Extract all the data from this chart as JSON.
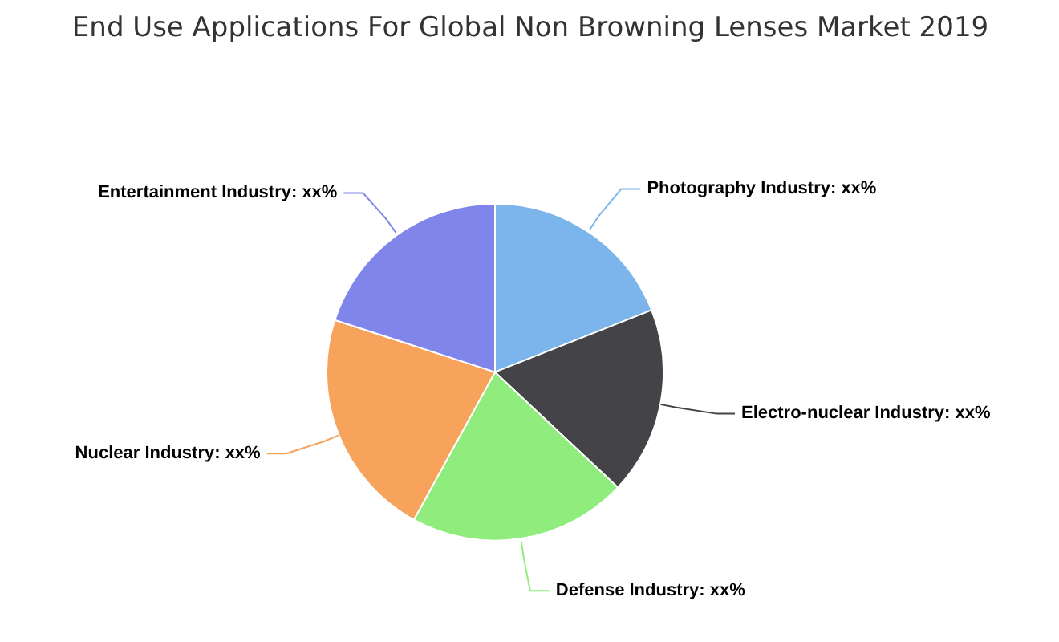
{
  "chart_data": {
    "type": "pie",
    "title": "End Use Applications For Global Non Browning Lenses Market 2019",
    "categories": [
      "Photography Industry",
      "Electro-nuclear Industry",
      "Defense Industry",
      "Nuclear Industry",
      "Entertainment Industry"
    ],
    "values": [
      19,
      18,
      21,
      22,
      20
    ],
    "colors": [
      "#7cb5ec",
      "#434348",
      "#90ed7d",
      "#f7a35c",
      "#8085e9"
    ],
    "value_labels": [
      "xx%",
      "xx%",
      "xx%",
      "xx%",
      "xx%"
    ]
  }
}
